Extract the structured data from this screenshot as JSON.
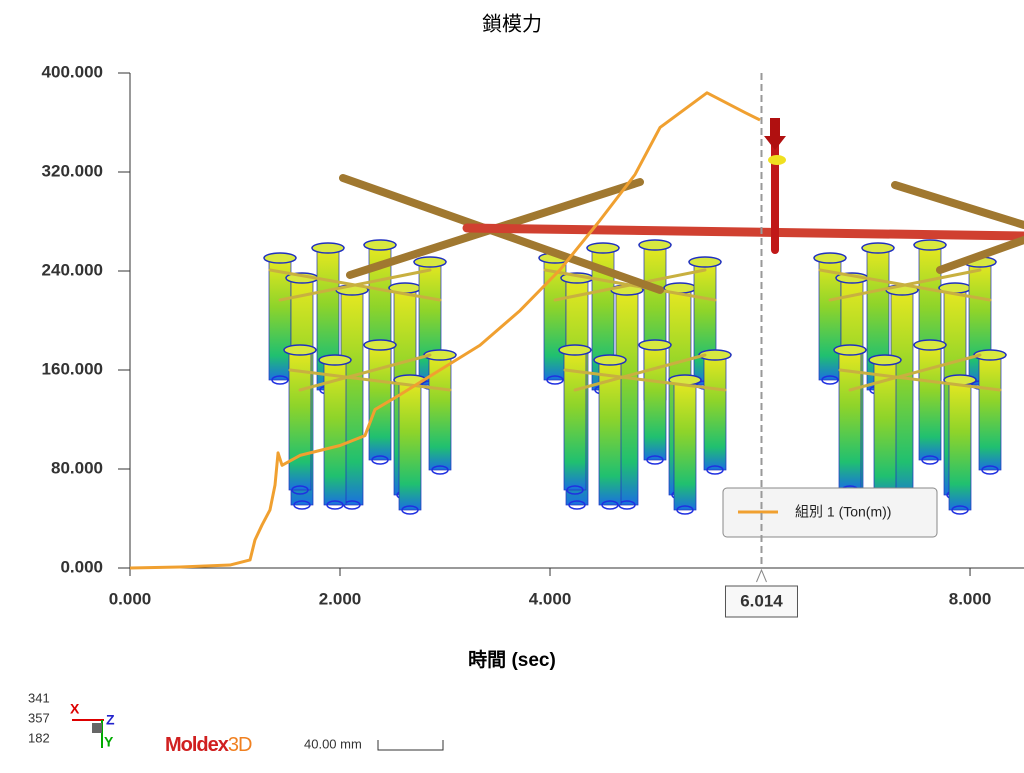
{
  "chart_data": {
    "type": "line",
    "title": "鎖模力",
    "x_label": "時間 (sec)",
    "series": [
      {
        "name": "組別 1 (Ton(m))",
        "color": "#f0a030",
        "x": [
          0,
          0.476,
          0.952,
          1.143,
          1.19,
          1.257,
          1.333,
          1.381,
          1.41,
          1.448,
          1.619,
          2.0,
          2.238,
          2.333,
          2.571,
          2.952,
          3.333,
          3.714,
          4.095,
          4.476,
          4.81,
          5.048,
          5.495,
          5.857,
          6.0
        ],
        "values": [
          0,
          0.8,
          2.4,
          6.5,
          22.6,
          34.7,
          46.9,
          67,
          93,
          83,
          91,
          99,
          107,
          128,
          140,
          160,
          180,
          208,
          241,
          281,
          318,
          356,
          384,
          368,
          362
        ]
      }
    ],
    "xlim": [
      0,
      8.514
    ],
    "ylim": [
      0,
      400
    ],
    "xticks": [
      {
        "value": 0,
        "label": "0.000"
      },
      {
        "value": 2,
        "label": "2.000"
      },
      {
        "value": 4,
        "label": "4.000"
      },
      {
        "value": 8,
        "label": "8.000"
      }
    ],
    "yticks": [
      {
        "value": 0,
        "label": "0.000"
      },
      {
        "value": 80,
        "label": "80.000"
      },
      {
        "value": 160,
        "label": "160.000"
      },
      {
        "value": 240,
        "label": "240.000"
      },
      {
        "value": 320,
        "label": "320.000"
      },
      {
        "value": 400,
        "label": "400.000"
      }
    ],
    "cursor": 6.014
  },
  "view_info": {
    "coordinates": [
      "341",
      "357",
      "182"
    ],
    "axes": [
      "X",
      "Z",
      "Y"
    ],
    "logo": {
      "main": "Moldex",
      "suffix": "3D"
    },
    "scale_bar": "40.00 mm"
  }
}
